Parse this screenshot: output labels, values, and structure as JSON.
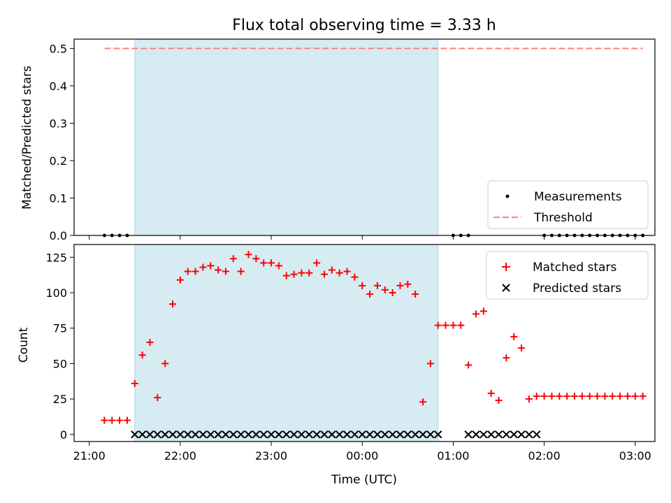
{
  "chart_data": [
    {
      "type": "scatter",
      "title": "Flux total observing time = 3.33 h",
      "xlabel": "",
      "ylabel": "Matched/Predicted stars",
      "ylim": [
        0,
        0.525
      ],
      "yticks": [
        "0.0",
        "0.1",
        "0.2",
        "0.3",
        "0.4",
        "0.5"
      ],
      "shaded_interval": [
        "21:30",
        "00:50"
      ],
      "threshold": {
        "name": "Threshold",
        "value": 0.5,
        "x_range": [
          "21:10",
          "03:05"
        ],
        "color": "#ff7f7f"
      },
      "legend": {
        "position": "lower-right",
        "entries": [
          "Measurements",
          "Threshold"
        ]
      },
      "series": [
        {
          "name": "Measurements",
          "color": "#000000",
          "x": [
            "21:10",
            "21:15",
            "21:20",
            "21:25",
            "01:00",
            "01:05",
            "01:10",
            "02:00",
            "02:05",
            "02:10",
            "02:15",
            "02:20",
            "02:25",
            "02:30",
            "02:35",
            "02:40",
            "02:45",
            "02:50",
            "02:55",
            "03:00",
            "03:05"
          ],
          "values": [
            0,
            0,
            0,
            0,
            0,
            0,
            0,
            0,
            0,
            0,
            0,
            0,
            0,
            0,
            0,
            0,
            0,
            0,
            0,
            0,
            0
          ]
        }
      ]
    },
    {
      "type": "scatter",
      "xlabel": "Time (UTC)",
      "ylabel": "Count",
      "ylim": [
        -5,
        134
      ],
      "yticks": [
        "0",
        "25",
        "50",
        "75",
        "100",
        "125"
      ],
      "xticks": [
        "21:00",
        "22:00",
        "23:00",
        "00:00",
        "01:00",
        "02:00",
        "03:00"
      ],
      "shaded_interval": [
        "21:30",
        "00:50"
      ],
      "legend": {
        "position": "upper-right",
        "entries": [
          "Matched stars",
          "Predicted stars"
        ]
      },
      "series": [
        {
          "name": "Matched stars",
          "marker": "+",
          "color": "#ff0000",
          "x": [
            "21:10",
            "21:15",
            "21:20",
            "21:25",
            "21:30",
            "21:35",
            "21:40",
            "21:45",
            "21:50",
            "21:55",
            "22:00",
            "22:05",
            "22:10",
            "22:15",
            "22:20",
            "22:25",
            "22:30",
            "22:35",
            "22:40",
            "22:45",
            "22:50",
            "22:55",
            "23:00",
            "23:05",
            "23:10",
            "23:15",
            "23:20",
            "23:25",
            "23:30",
            "23:35",
            "23:40",
            "23:45",
            "23:50",
            "23:55",
            "00:00",
            "00:05",
            "00:10",
            "00:15",
            "00:20",
            "00:25",
            "00:30",
            "00:35",
            "00:40",
            "00:45",
            "00:50",
            "00:55",
            "01:00",
            "01:05",
            "01:10",
            "01:15",
            "01:20",
            "01:25",
            "01:30",
            "01:35",
            "01:40",
            "01:45",
            "01:50",
            "01:55",
            "02:00",
            "02:05",
            "02:10",
            "02:15",
            "02:20",
            "02:25",
            "02:30",
            "02:35",
            "02:40",
            "02:45",
            "02:50",
            "02:55",
            "03:00",
            "03:05"
          ],
          "values": [
            10,
            10,
            10,
            10,
            36,
            56,
            65,
            26,
            50,
            92,
            109,
            115,
            115,
            118,
            119,
            116,
            115,
            124,
            115,
            127,
            124,
            121,
            121,
            119,
            112,
            113,
            114,
            114,
            121,
            113,
            116,
            114,
            115,
            111,
            105,
            99,
            105,
            102,
            100,
            105,
            106,
            99,
            23,
            50,
            77,
            77,
            77,
            77,
            49,
            85,
            87,
            29,
            24,
            54,
            69,
            61,
            25,
            27,
            27,
            27,
            27,
            27,
            27,
            27,
            27,
            27,
            27,
            27,
            27,
            27,
            27,
            27
          ]
        },
        {
          "name": "Predicted stars",
          "marker": "x",
          "color": "#000000",
          "x": [
            "21:30",
            "21:35",
            "21:40",
            "21:45",
            "21:50",
            "21:55",
            "22:00",
            "22:05",
            "22:10",
            "22:15",
            "22:20",
            "22:25",
            "22:30",
            "22:35",
            "22:40",
            "22:45",
            "22:50",
            "22:55",
            "23:00",
            "23:05",
            "23:10",
            "23:15",
            "23:20",
            "23:25",
            "23:30",
            "23:35",
            "23:40",
            "23:45",
            "23:50",
            "23:55",
            "00:00",
            "00:05",
            "00:10",
            "00:15",
            "00:20",
            "00:25",
            "00:30",
            "00:35",
            "00:40",
            "00:45",
            "00:50",
            "01:10",
            "01:15",
            "01:20",
            "01:25",
            "01:30",
            "01:35",
            "01:40",
            "01:45",
            "01:50",
            "01:55"
          ],
          "values": [
            0,
            0,
            0,
            0,
            0,
            0,
            0,
            0,
            0,
            0,
            0,
            0,
            0,
            0,
            0,
            0,
            0,
            0,
            0,
            0,
            0,
            0,
            0,
            0,
            0,
            0,
            0,
            0,
            0,
            0,
            0,
            0,
            0,
            0,
            0,
            0,
            0,
            0,
            0,
            0,
            0,
            0,
            0,
            0,
            0,
            0,
            0,
            0,
            0,
            0,
            0
          ]
        }
      ]
    }
  ]
}
